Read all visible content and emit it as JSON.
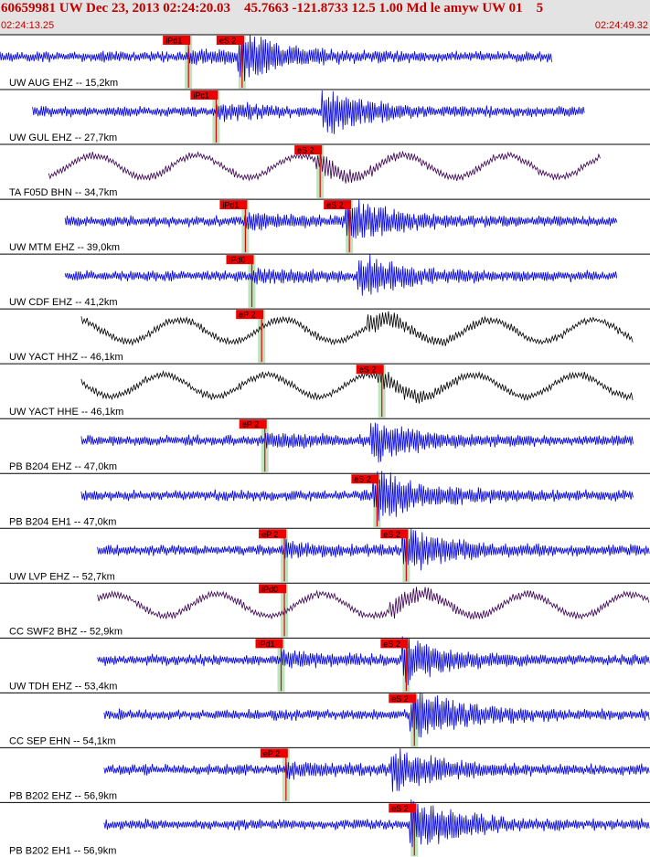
{
  "header": {
    "title": "60659981 UW Dec 23, 2013 02:24:20.03    45.7663 -121.8733 12.5 1.00 Md le amyw UW 01    5",
    "start_time": "02:24:13.25",
    "end_time": "02:24:49.32"
  },
  "colors": {
    "header_bg": "#e3e3e3",
    "header_text": "#c00000",
    "trace_blue": "#0000dd",
    "trace_purple": "#3a0050",
    "trace_black": "#000000",
    "pick_red": "#ee0000",
    "pick_window_green": "#bfe3bf",
    "tick_marks": "#333333"
  },
  "chart_data": {
    "type": "line",
    "title": "60659981 UW Dec 23, 2013 02:24:20.03    45.7663 -121.8733 12.5 1.00 Md le amyw UW 01    5",
    "x_range": [
      "02:24:13.25",
      "02:24:49.32"
    ],
    "series": [
      {
        "label": "UW AUG EHZ -- 15,2km",
        "trace": "blue",
        "start_s": 0.0,
        "end_s": 34.0,
        "picks": [
          {
            "label": "iPd1",
            "t": 11.6
          },
          {
            "label": "eS 2",
            "t": 14.9
          }
        ]
      },
      {
        "label": "UW GUL EHZ -- 27,7km",
        "trace": "blue",
        "start_s": 2.0,
        "end_s": 36.0,
        "picks": [
          {
            "label": "iPc1",
            "t": 13.3
          }
        ]
      },
      {
        "label": "TA F05D BHN -- 34,7km",
        "trace": "purple",
        "start_s": 3.0,
        "end_s": 37.0,
        "picks": [
          {
            "label": "eS 2",
            "t": 19.7
          }
        ]
      },
      {
        "label": "UW MTM EHZ -- 39,0km",
        "trace": "blue",
        "start_s": 4.0,
        "end_s": 38.0,
        "picks": [
          {
            "label": "iPd1",
            "t": 15.1
          },
          {
            "label": "eS 2",
            "t": 21.5
          }
        ]
      },
      {
        "label": "UW CDF EHZ -- 41,2km",
        "trace": "blue",
        "start_s": 4.0,
        "end_s": 38.0,
        "picks": [
          {
            "label": "iPd0",
            "t": 15.5
          }
        ]
      },
      {
        "label": "UW YACT HHZ -- 46,1km",
        "trace": "black",
        "start_s": 5.0,
        "end_s": 39.0,
        "picks": [
          {
            "label": "eP 2",
            "t": 16.1
          }
        ]
      },
      {
        "label": "UW YACT HHE -- 46,1km",
        "trace": "black",
        "start_s": 5.0,
        "end_s": 39.0,
        "picks": [
          {
            "label": "eS 2",
            "t": 23.5
          }
        ]
      },
      {
        "label": "PB B204 EHZ -- 47,0km",
        "trace": "blue",
        "start_s": 5.0,
        "end_s": 39.0,
        "picks": [
          {
            "label": "eP 2",
            "t": 16.3
          }
        ]
      },
      {
        "label": "PB B204 EH1 -- 47,0km",
        "trace": "blue",
        "start_s": 5.0,
        "end_s": 39.0,
        "picks": [
          {
            "label": "eS 2",
            "t": 23.2
          }
        ]
      },
      {
        "label": "UW LVP EHZ -- 52,7km",
        "trace": "blue",
        "start_s": 6.0,
        "end_s": 40.0,
        "picks": [
          {
            "label": "eP 2",
            "t": 17.5
          },
          {
            "label": "eS 2",
            "t": 25.0
          }
        ]
      },
      {
        "label": "CC SWF2 BHZ -- 52,9km",
        "trace": "purple",
        "start_s": 6.0,
        "end_s": 40.0,
        "picks": [
          {
            "label": "iPd0",
            "t": 17.5
          }
        ]
      },
      {
        "label": "UW TDH EHZ -- 53,4km",
        "trace": "blue",
        "start_s": 6.0,
        "end_s": 40.0,
        "picks": [
          {
            "label": "iPd1",
            "t": 17.3
          },
          {
            "label": "eS 2",
            "t": 25.0
          }
        ]
      },
      {
        "label": "CC SEP EHN -- 54,1km",
        "trace": "blue",
        "start_s": 6.4,
        "end_s": 40.0,
        "picks": [
          {
            "label": "eS 2",
            "t": 25.5
          }
        ]
      },
      {
        "label": "PB B202 EHZ -- 56,9km",
        "trace": "blue",
        "start_s": 6.4,
        "end_s": 40.0,
        "picks": [
          {
            "label": "eP 2",
            "t": 17.6
          }
        ]
      },
      {
        "label": "PB B202 EH1 -- 56,9km",
        "trace": "blue",
        "start_s": 6.4,
        "end_s": 40.0,
        "picks": [
          {
            "label": "eS 2",
            "t": 25.5
          }
        ]
      }
    ]
  }
}
